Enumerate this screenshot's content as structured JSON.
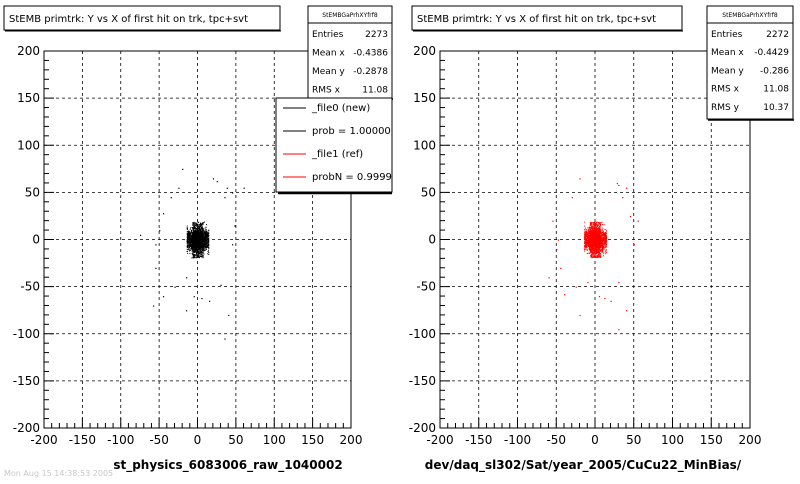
{
  "chart_data": [
    {
      "type": "scatter",
      "title": "StEMB primtrk: Y vs X of first hit on trk, tpc+svt",
      "xlabel": "st_physics_6083006_raw_1040002",
      "ylabel": "",
      "xlim": [
        -200,
        200
      ],
      "ylim": [
        -200,
        200
      ],
      "grid": true,
      "x_ticks": [
        "-200",
        "-150",
        "-100",
        "-50",
        "0",
        "50",
        "100",
        "150",
        "200"
      ],
      "y_ticks": [
        "200",
        "150",
        "100",
        "50",
        "0",
        "-50",
        "-100",
        "-150",
        "-200"
      ],
      "color": "#000000",
      "stats": {
        "name": "StEMBGaPrhXYfrf8",
        "rows": [
          {
            "label": "Entries",
            "value": "2273"
          },
          {
            "label": "Mean x",
            "value": "-0.4386"
          },
          {
            "label": "Mean y",
            "value": "-0.2878"
          },
          {
            "label": "RMS x",
            "value": "11.08"
          }
        ]
      },
      "legend": [
        {
          "label": "_file0 (new)",
          "color": "#000000"
        },
        {
          "label": "prob = 1.000000",
          "color": "#000000"
        },
        {
          "label": "_file1 (ref)",
          "color": "#ff0000"
        },
        {
          "label": "probN = 0.99993",
          "color": "#ff0000"
        }
      ],
      "outliers": [
        [
          -20,
          75
        ],
        [
          20,
          65
        ],
        [
          25,
          62
        ],
        [
          38,
          55
        ],
        [
          45,
          50
        ],
        [
          -50,
          10
        ],
        [
          -55,
          -5
        ],
        [
          -55,
          -30
        ],
        [
          -45,
          -60
        ],
        [
          -58,
          -70
        ],
        [
          -30,
          -50
        ],
        [
          -15,
          -40
        ],
        [
          -5,
          -60
        ],
        [
          5,
          -62
        ],
        [
          15,
          -65
        ],
        [
          30,
          -48
        ],
        [
          35,
          -105
        ],
        [
          45,
          -5
        ],
        [
          48,
          15
        ],
        [
          -75,
          5
        ],
        [
          60,
          55
        ],
        [
          35,
          45
        ],
        [
          -25,
          55
        ],
        [
          -35,
          45
        ],
        [
          -45,
          28
        ],
        [
          40,
          -80
        ],
        [
          -15,
          -75
        ]
      ]
    },
    {
      "type": "scatter",
      "title": "StEMB primtrk: Y vs X of first hit on trk, tpc+svt",
      "xlabel": "dev/daq_sl302/Sat/year_2005/CuCu22_MinBias/",
      "ylabel": "",
      "xlim": [
        -200,
        200
      ],
      "ylim": [
        -200,
        200
      ],
      "grid": true,
      "x_ticks": [
        "-200",
        "-150",
        "-100",
        "-50",
        "0",
        "50",
        "100",
        "150",
        "200"
      ],
      "y_ticks": [
        "200",
        "150",
        "100",
        "50",
        "0",
        "-50",
        "-100",
        "-150",
        "-200"
      ],
      "color": "#ff0000",
      "stats": {
        "name": "StEMBGaPrhXYfrf8",
        "rows": [
          {
            "label": "Entries",
            "value": "2272"
          },
          {
            "label": "Mean x",
            "value": "-0.4429"
          },
          {
            "label": "Mean y",
            "value": "-0.286"
          },
          {
            "label": "RMS x",
            "value": "11.08"
          },
          {
            "label": "RMS y",
            "value": "10.37"
          }
        ]
      },
      "outliers": [
        [
          -20,
          65
        ],
        [
          28,
          60
        ],
        [
          30,
          58
        ],
        [
          40,
          55
        ],
        [
          -48,
          0
        ],
        [
          -50,
          -10
        ],
        [
          -45,
          -30
        ],
        [
          -40,
          -58
        ],
        [
          -25,
          -50
        ],
        [
          -10,
          -45
        ],
        [
          5,
          -60
        ],
        [
          12,
          -62
        ],
        [
          20,
          -65
        ],
        [
          30,
          -45
        ],
        [
          30,
          -95
        ],
        [
          50,
          -5
        ],
        [
          55,
          20
        ],
        [
          -55,
          20
        ],
        [
          -60,
          -40
        ],
        [
          35,
          45
        ],
        [
          -30,
          45
        ],
        [
          -20,
          -80
        ],
        [
          40,
          -75
        ],
        [
          45,
          25
        ]
      ]
    }
  ],
  "footer_text": "Mon Aug 15 14:38:53 2005"
}
